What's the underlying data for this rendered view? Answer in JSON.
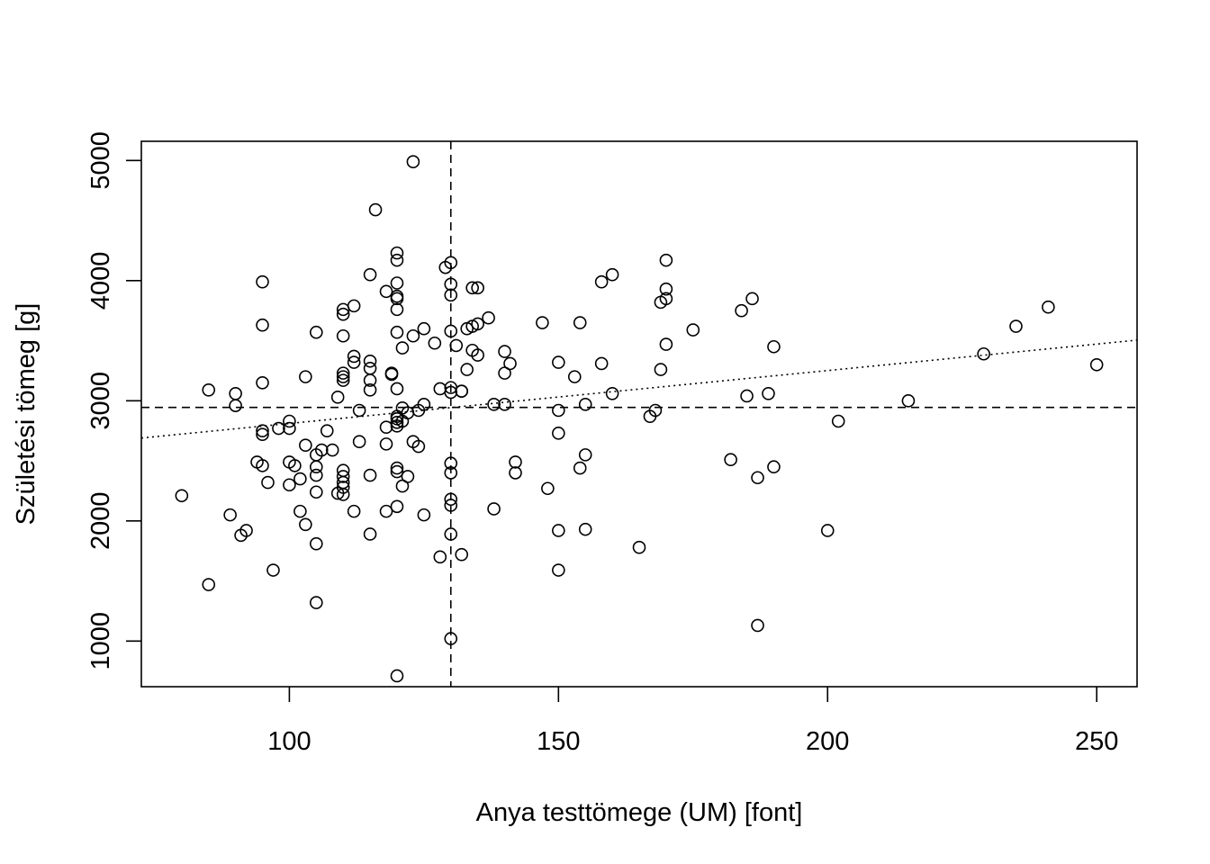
{
  "chart_data": {
    "type": "scatter",
    "xlabel": "Anya testtömege (UM) [font]",
    "ylabel": "Születési tömeg [g]",
    "xlim": [
      72.5,
      257.5
    ],
    "ylim": [
      620,
      5160
    ],
    "x_ticks": [
      100,
      150,
      200,
      250
    ],
    "y_ticks": [
      1000,
      2000,
      3000,
      4000,
      5000
    ],
    "grid": false,
    "legend": "none",
    "reference_lines": {
      "vertical_x": 130,
      "horizontal_y": 2945
    },
    "trend_line": {
      "style": "dotted",
      "points": [
        [
          72.5,
          2690
        ],
        [
          257.5,
          3505
        ]
      ]
    },
    "points": [
      [
        123,
        4990
      ],
      [
        116,
        4590
      ],
      [
        120,
        4230
      ],
      [
        120,
        4170
      ],
      [
        130,
        4150
      ],
      [
        129,
        4110
      ],
      [
        115,
        4050
      ],
      [
        160,
        4050
      ],
      [
        95,
        3990
      ],
      [
        120,
        3980
      ],
      [
        130,
        3970
      ],
      [
        158,
        3990
      ],
      [
        134,
        3940
      ],
      [
        135,
        3940
      ],
      [
        170,
        4170
      ],
      [
        170,
        3930
      ],
      [
        118,
        3910
      ],
      [
        120,
        3870
      ],
      [
        120,
        3850
      ],
      [
        130,
        3880
      ],
      [
        170,
        3850
      ],
      [
        169,
        3820
      ],
      [
        186,
        3850
      ],
      [
        241,
        3780
      ],
      [
        112,
        3790
      ],
      [
        110,
        3760
      ],
      [
        110,
        3720
      ],
      [
        120,
        3760
      ],
      [
        137,
        3690
      ],
      [
        184,
        3750
      ],
      [
        95,
        3630
      ],
      [
        105,
        3570
      ],
      [
        120,
        3570
      ],
      [
        123,
        3540
      ],
      [
        125,
        3600
      ],
      [
        130,
        3580
      ],
      [
        133,
        3600
      ],
      [
        134,
        3620
      ],
      [
        135,
        3640
      ],
      [
        147,
        3650
      ],
      [
        154,
        3650
      ],
      [
        175,
        3590
      ],
      [
        235,
        3620
      ],
      [
        110,
        3540
      ],
      [
        127,
        3480
      ],
      [
        131,
        3460
      ],
      [
        121,
        3440
      ],
      [
        134,
        3420
      ],
      [
        135,
        3380
      ],
      [
        140,
        3410
      ],
      [
        170,
        3470
      ],
      [
        190,
        3450
      ],
      [
        229,
        3390
      ],
      [
        112,
        3370
      ],
      [
        112,
        3320
      ],
      [
        115,
        3330
      ],
      [
        115,
        3270
      ],
      [
        133,
        3260
      ],
      [
        141,
        3310
      ],
      [
        150,
        3320
      ],
      [
        158,
        3310
      ],
      [
        169,
        3260
      ],
      [
        250,
        3300
      ],
      [
        103,
        3200
      ],
      [
        110,
        3230
      ],
      [
        110,
        3200
      ],
      [
        110,
        3170
      ],
      [
        115,
        3170
      ],
      [
        119,
        3230
      ],
      [
        119,
        3220
      ],
      [
        140,
        3230
      ],
      [
        153,
        3200
      ],
      [
        95,
        3150
      ],
      [
        128,
        3100
      ],
      [
        130,
        3110
      ],
      [
        130,
        3070
      ],
      [
        132,
        3080
      ],
      [
        132,
        3080
      ],
      [
        115,
        3090
      ],
      [
        120,
        3100
      ],
      [
        85,
        3090
      ],
      [
        90,
        3060
      ],
      [
        109,
        3030
      ],
      [
        160,
        3060
      ],
      [
        185,
        3040
      ],
      [
        189,
        3060
      ],
      [
        90,
        2960
      ],
      [
        113,
        2920
      ],
      [
        121,
        2940
      ],
      [
        122,
        2900
      ],
      [
        124,
        2920
      ],
      [
        125,
        2970
      ],
      [
        138,
        2970
      ],
      [
        140,
        2970
      ],
      [
        150,
        2920
      ],
      [
        155,
        2970
      ],
      [
        168,
        2920
      ],
      [
        167,
        2870
      ],
      [
        215,
        3000
      ],
      [
        100,
        2830
      ],
      [
        100,
        2770
      ],
      [
        98,
        2770
      ],
      [
        95,
        2750
      ],
      [
        95,
        2720
      ],
      [
        107,
        2750
      ],
      [
        118,
        2780
      ],
      [
        120,
        2790
      ],
      [
        120,
        2820
      ],
      [
        120,
        2850
      ],
      [
        120,
        2870
      ],
      [
        121,
        2830
      ],
      [
        150,
        2730
      ],
      [
        202,
        2830
      ],
      [
        103,
        2630
      ],
      [
        106,
        2590
      ],
      [
        108,
        2590
      ],
      [
        113,
        2660
      ],
      [
        118,
        2640
      ],
      [
        123,
        2660
      ],
      [
        124,
        2620
      ],
      [
        94,
        2490
      ],
      [
        95,
        2460
      ],
      [
        100,
        2490
      ],
      [
        101,
        2460
      ],
      [
        105,
        2550
      ],
      [
        105,
        2450
      ],
      [
        105,
        2380
      ],
      [
        102,
        2350
      ],
      [
        100,
        2300
      ],
      [
        96,
        2320
      ],
      [
        110,
        2420
      ],
      [
        110,
        2370
      ],
      [
        110,
        2320
      ],
      [
        110,
        2280
      ],
      [
        109,
        2230
      ],
      [
        110,
        2220
      ],
      [
        105,
        2240
      ],
      [
        115,
        2380
      ],
      [
        120,
        2440
      ],
      [
        120,
        2410
      ],
      [
        121,
        2290
      ],
      [
        122,
        2370
      ],
      [
        130,
        2480
      ],
      [
        130,
        2400
      ],
      [
        142,
        2490
      ],
      [
        142,
        2400
      ],
      [
        154,
        2440
      ],
      [
        155,
        2550
      ],
      [
        182,
        2510
      ],
      [
        187,
        2360
      ],
      [
        190,
        2450
      ],
      [
        80,
        2210
      ],
      [
        89,
        2050
      ],
      [
        102,
        2080
      ],
      [
        103,
        1970
      ],
      [
        112,
        2080
      ],
      [
        118,
        2080
      ],
      [
        120,
        2120
      ],
      [
        125,
        2050
      ],
      [
        130,
        2180
      ],
      [
        130,
        2130
      ],
      [
        138,
        2100
      ],
      [
        148,
        2270
      ],
      [
        91,
        1880
      ],
      [
        92,
        1920
      ],
      [
        105,
        1810
      ],
      [
        115,
        1890
      ],
      [
        130,
        1890
      ],
      [
        128,
        1700
      ],
      [
        132,
        1720
      ],
      [
        150,
        1920
      ],
      [
        155,
        1930
      ],
      [
        165,
        1780
      ],
      [
        200,
        1920
      ],
      [
        85,
        1470
      ],
      [
        97,
        1590
      ],
      [
        150,
        1590
      ],
      [
        105,
        1320
      ],
      [
        187,
        1130
      ],
      [
        130,
        1020
      ],
      [
        120,
        710
      ]
    ]
  }
}
